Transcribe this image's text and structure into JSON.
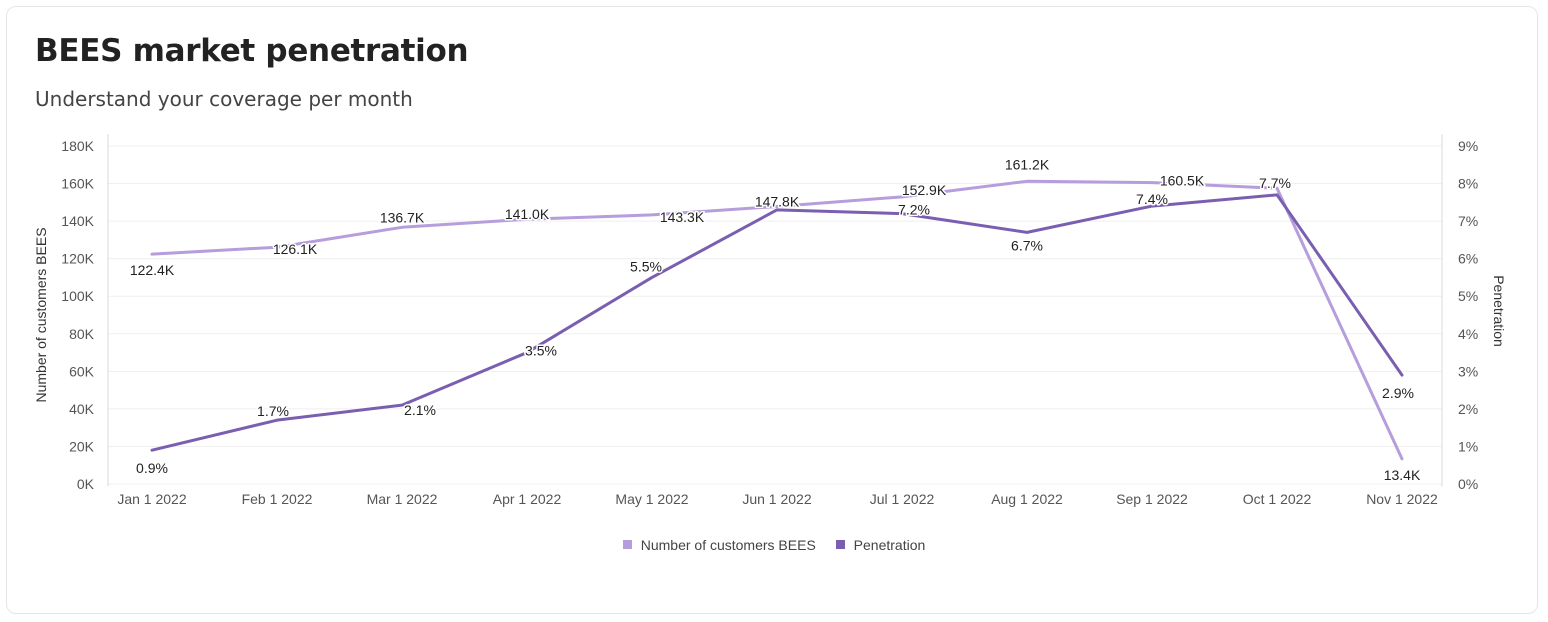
{
  "header": {
    "title": "BEES market penetration",
    "subtitle": "Understand your coverage per month"
  },
  "chart_data": {
    "type": "line",
    "categories": [
      "Jan 1 2022",
      "Feb 1 2022",
      "Mar 1 2022",
      "Apr 1 2022",
      "May 1 2022",
      "Jun 1 2022",
      "Jul 1 2022",
      "Aug 1 2022",
      "Sep 1 2022",
      "Oct 1 2022",
      "Nov 1 2022"
    ],
    "ylabel": "Number of customers BEES",
    "y2label": "Penetration",
    "ylim": [
      0,
      180000
    ],
    "y2lim": [
      0,
      9
    ],
    "yticks": [
      {
        "value": 0,
        "label": "0K"
      },
      {
        "value": 20000,
        "label": "20K"
      },
      {
        "value": 40000,
        "label": "40K"
      },
      {
        "value": 60000,
        "label": "60K"
      },
      {
        "value": 80000,
        "label": "80K"
      },
      {
        "value": 100000,
        "label": "100K"
      },
      {
        "value": 120000,
        "label": "120K"
      },
      {
        "value": 140000,
        "label": "140K"
      },
      {
        "value": 160000,
        "label": "160K"
      },
      {
        "value": 180000,
        "label": "180K"
      }
    ],
    "y2ticks": [
      {
        "value": 0,
        "label": "0%"
      },
      {
        "value": 1,
        "label": "1%"
      },
      {
        "value": 2,
        "label": "2%"
      },
      {
        "value": 3,
        "label": "3%"
      },
      {
        "value": 4,
        "label": "4%"
      },
      {
        "value": 5,
        "label": "5%"
      },
      {
        "value": 6,
        "label": "6%"
      },
      {
        "value": 7,
        "label": "7%"
      },
      {
        "value": 8,
        "label": "8%"
      },
      {
        "value": 9,
        "label": "9%"
      }
    ],
    "grid": true,
    "legend_position": "bottom-center",
    "series": [
      {
        "name": "Number of customers BEES",
        "axis": "left",
        "color": "#b69ddc",
        "values": [
          122400,
          126100,
          136700,
          141000,
          143300,
          147800,
          152900,
          161200,
          160500,
          157500,
          13400
        ],
        "labels": [
          "122.4K",
          "126.1K",
          "136.7K",
          "141.0K",
          "143.3K",
          "147.8K",
          "152.9K",
          "161.2K",
          "160.5K",
          "",
          "13.4K"
        ]
      },
      {
        "name": "Penetration",
        "axis": "right",
        "color": "#7a5eb0",
        "values": [
          0.9,
          1.7,
          2.1,
          3.5,
          5.5,
          7.3,
          7.2,
          6.7,
          7.4,
          7.7,
          2.9
        ],
        "labels": [
          "0.9%",
          "1.7%",
          "2.1%",
          "3.5%",
          "5.5%",
          "",
          "7.2%",
          "6.7%",
          "7.4%",
          "7.7%",
          "2.9%"
        ]
      }
    ]
  }
}
